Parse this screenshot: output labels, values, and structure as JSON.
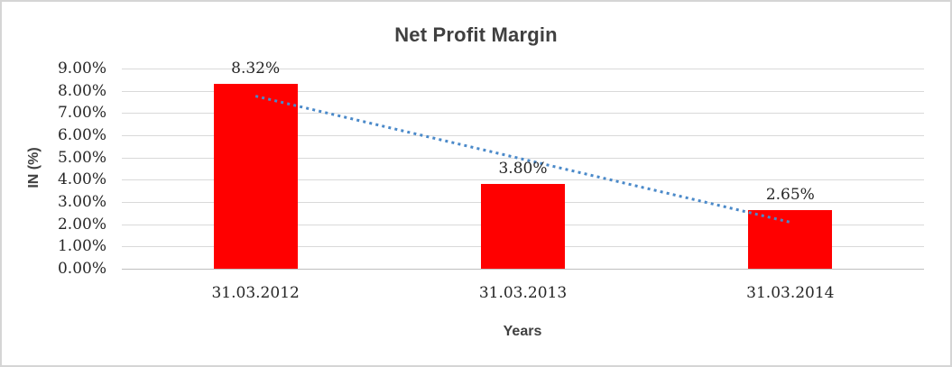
{
  "chart_data": {
    "type": "bar",
    "title": "Net Profit Margin",
    "xlabel": "Years",
    "ylabel": "IN (%)",
    "categories": [
      "31.03.2012",
      "31.03.2013",
      "31.03.2014"
    ],
    "values": [
      8.32,
      3.8,
      2.65
    ],
    "data_labels": [
      "8.32%",
      "3.80%",
      "2.65%"
    ],
    "ylim": [
      0,
      9
    ],
    "ytick_labels": [
      "0.00%",
      "1.00%",
      "2.00%",
      "3.00%",
      "4.00%",
      "5.00%",
      "6.00%",
      "7.00%",
      "8.00%",
      "9.00%"
    ],
    "grid": true,
    "legend": "none",
    "bar_color": "#FF0000",
    "trendline": {
      "type": "linear",
      "style": "dotted",
      "color": "#4A89C9",
      "start_value": 7.76,
      "end_value": 2.09
    },
    "colors": {
      "title_text": "#404040",
      "axis_title_text": "#404040",
      "tick_text": "#262626",
      "data_label_text": "#262626",
      "gridline": "#D9D9D9",
      "axis_line": "#BFBFBF",
      "frame_border": "#D5D5D5",
      "background": "#FFFFFF"
    }
  }
}
